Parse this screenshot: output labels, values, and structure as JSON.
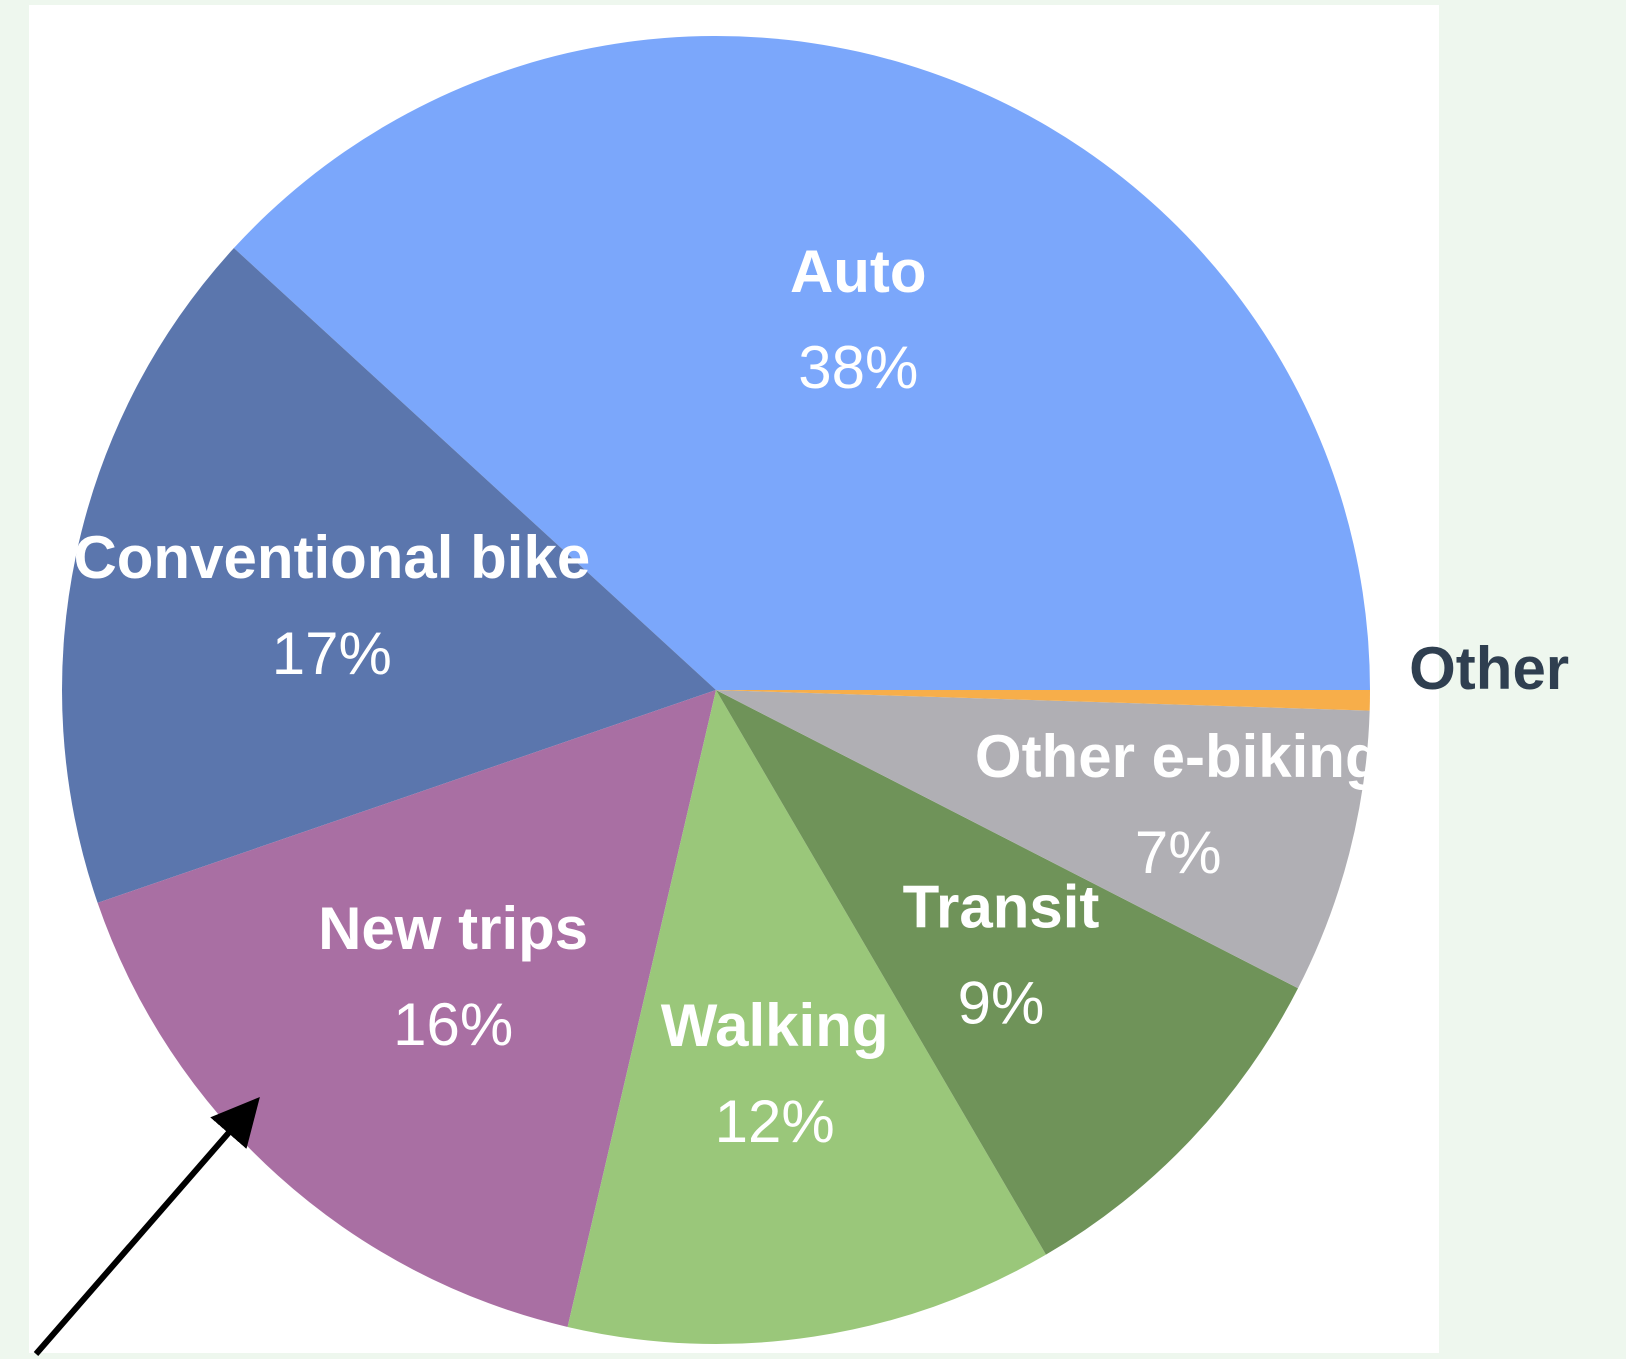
{
  "chart_data": {
    "type": "pie",
    "categories": [
      "Auto",
      "Conventional bike",
      "New trips",
      "Walking",
      "Transit",
      "Other e-biking",
      "Other"
    ],
    "values": [
      38,
      17,
      16,
      12,
      9,
      7,
      0.5
    ],
    "value_labels": [
      "38%",
      "17%",
      "16%",
      "12%",
      "9%",
      "7%",
      null
    ],
    "colors": [
      "#7ba7fb",
      "#5b76ad",
      "#a96fa3",
      "#9ac77a",
      "#6f9359",
      "#b0afb4",
      "#f7ae4a"
    ]
  }
}
